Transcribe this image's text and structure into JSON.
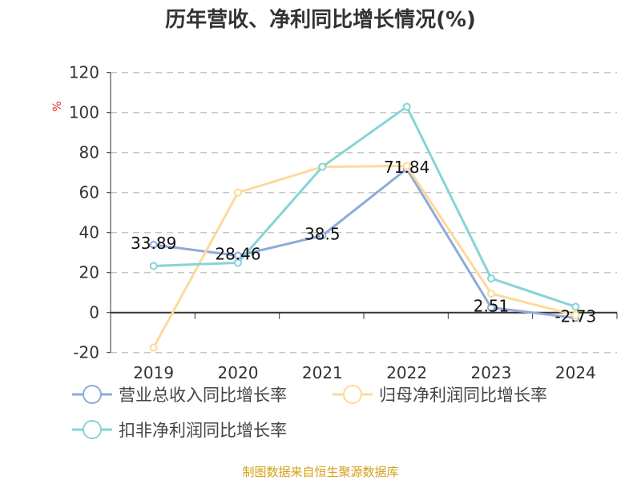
{
  "chart_data": {
    "type": "line",
    "title": "历年营收、净利同比增长情况(%)",
    "ylabel": "%",
    "categories": [
      "2019",
      "2020",
      "2021",
      "2022",
      "2023",
      "2024"
    ],
    "ylim": [
      -20,
      120
    ],
    "yticks": [
      -20,
      0,
      20,
      40,
      60,
      80,
      100,
      120
    ],
    "grid": true,
    "legend_placement": "bottom",
    "series": [
      {
        "name": "营业总收入同比增长率",
        "color": "#8eaad9",
        "values": [
          33.89,
          28.46,
          38.5,
          71.84,
          2.51,
          -2.73
        ],
        "labels": [
          "33.89",
          "28.46",
          "38.5",
          "71.84",
          "2.51",
          "-2.73"
        ]
      },
      {
        "name": "归母净利润同比增长率",
        "color": "#fdd99a",
        "values": [
          -17.5,
          60.0,
          72.9,
          73.3,
          9.5,
          -1.3
        ]
      },
      {
        "name": "扣非净利润同比增长率",
        "color": "#85d4d6",
        "values": [
          23.3,
          24.9,
          72.9,
          102.9,
          17.1,
          2.9
        ]
      }
    ]
  },
  "source": "制图数据来自恒生聚源数据库"
}
